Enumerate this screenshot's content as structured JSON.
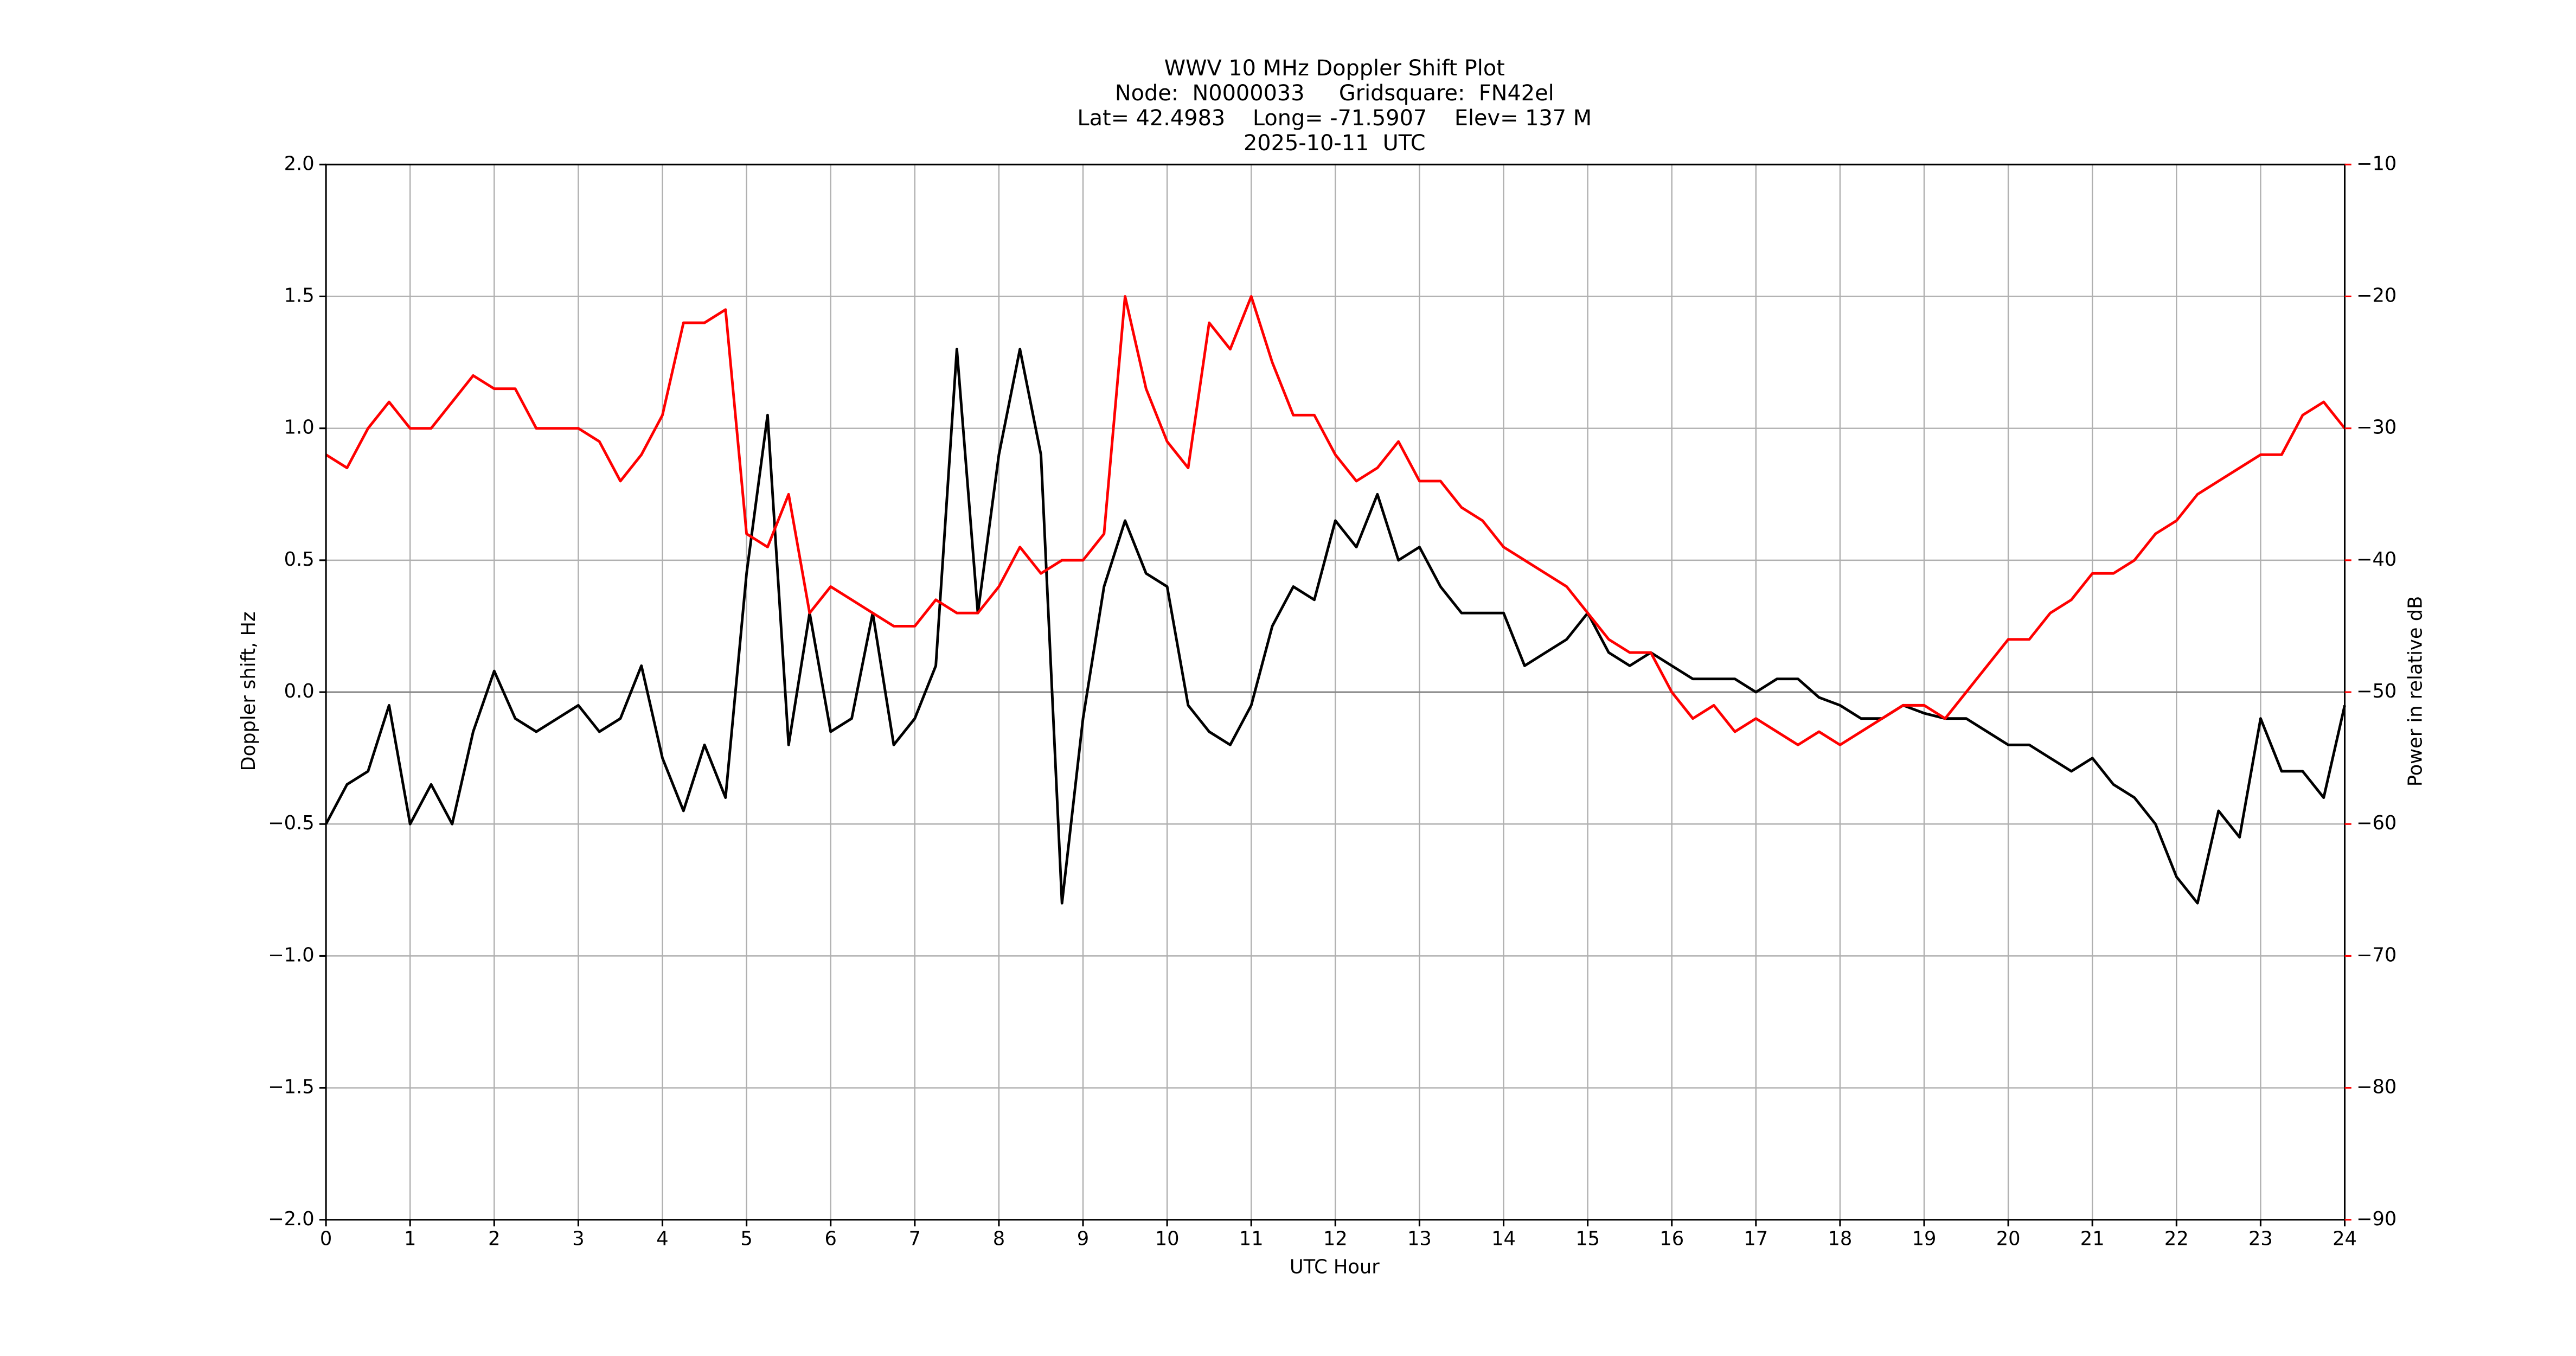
{
  "chart_data": {
    "type": "line",
    "title": [
      "WWV 10 MHz Doppler Shift Plot",
      "Node:  N0000033     Gridsquare:  FN42el",
      "Lat= 42.4983    Long= -71.5907    Elev= 137 M",
      "2025-10-11  UTC"
    ],
    "xlabel": "UTC Hour",
    "ylabel": "Doppler shift, Hz",
    "y2label": "Power in relative dB",
    "y2label_color": "#ff0000",
    "grid": true,
    "x": [
      0,
      0.25,
      0.5,
      0.75,
      1,
      1.25,
      1.5,
      1.75,
      2,
      2.25,
      2.5,
      2.75,
      3,
      3.25,
      3.5,
      3.75,
      4,
      4.25,
      4.5,
      4.75,
      5,
      5.25,
      5.5,
      5.75,
      6,
      6.25,
      6.5,
      6.75,
      7,
      7.25,
      7.5,
      7.75,
      8,
      8.25,
      8.5,
      8.75,
      9,
      9.25,
      9.5,
      9.75,
      10,
      10.25,
      10.5,
      10.75,
      11,
      11.25,
      11.5,
      11.75,
      12,
      12.25,
      12.5,
      12.75,
      13,
      13.25,
      13.5,
      13.75,
      14,
      14.25,
      14.5,
      14.75,
      15,
      15.25,
      15.5,
      15.75,
      16,
      16.25,
      16.5,
      16.75,
      17,
      17.25,
      17.5,
      17.75,
      18,
      18.25,
      18.5,
      18.75,
      19,
      19.25,
      19.5,
      19.75,
      20,
      20.25,
      20.5,
      20.75,
      21,
      21.25,
      21.5,
      21.75,
      22,
      22.25,
      22.5,
      22.75,
      23,
      23.25,
      23.5,
      23.75,
      24
    ],
    "series": [
      {
        "color": "#000000",
        "values": [
          -0.5,
          -0.35,
          -0.3,
          -0.05,
          -0.5,
          -0.35,
          -0.5,
          -0.15,
          0.08,
          -0.1,
          -0.15,
          -0.1,
          -0.05,
          -0.15,
          -0.1,
          0.1,
          -0.25,
          -0.45,
          -0.2,
          -0.4,
          0.45,
          1.05,
          -0.2,
          0.3,
          -0.15,
          -0.1,
          0.3,
          -0.2,
          -0.1,
          0.1,
          1.3,
          0.3,
          0.9,
          1.3,
          0.9,
          -0.8,
          -0.1,
          0.4,
          0.65,
          0.45,
          0.4,
          -0.05,
          -0.15,
          -0.2,
          -0.05,
          0.25,
          0.4,
          0.35,
          0.65,
          0.55,
          0.75,
          0.5,
          0.55,
          0.4,
          0.3,
          0.3,
          0.3,
          0.1,
          0.15,
          0.2,
          0.3,
          0.15,
          0.1,
          0.15,
          0.1,
          0.05,
          0.05,
          0.05,
          0.0,
          0.05,
          0.05,
          -0.02,
          -0.05,
          -0.1,
          -0.1,
          -0.05,
          -0.08,
          -0.1,
          -0.1,
          -0.15,
          -0.2,
          -0.2,
          -0.25,
          -0.3,
          -0.25,
          -0.35,
          -0.4,
          -0.5,
          -0.7,
          -0.8,
          -0.45,
          -0.55,
          -0.1,
          -0.3,
          -0.3,
          -0.4,
          -0.05
        ]
      },
      {
        "color": "#ff0000",
        "axis": "y2",
        "values": [
          -32,
          -33,
          -30,
          -28,
          -30,
          -30,
          -28,
          -26,
          -27,
          -27,
          -30,
          -30,
          -30,
          -31,
          -34,
          -32,
          -29,
          -22,
          -22,
          -21,
          -38,
          -39,
          -35,
          -44,
          -42,
          -43,
          -44,
          -45,
          -45,
          -43,
          -44,
          -44,
          -42,
          -39,
          -41,
          -40,
          -40,
          -38,
          -20,
          -27,
          -31,
          -33,
          -22,
          -24,
          -20,
          -25,
          -29,
          -29,
          -32,
          -34,
          -33,
          -31,
          -34,
          -34,
          -36,
          -37,
          -39,
          -40,
          -41,
          -42,
          -44,
          -46,
          -47,
          -47,
          -50,
          -52,
          -51,
          -53,
          -52,
          -53,
          -54,
          -53,
          -54,
          -53,
          -52,
          -51,
          -51,
          -52,
          -50,
          -48,
          -46,
          -46,
          -44,
          -43,
          -41,
          -41,
          -40,
          -38,
          -37,
          -35,
          -34,
          -33,
          -32,
          -32,
          -29,
          -28,
          -30
        ]
      }
    ],
    "xlim": [
      0,
      24
    ],
    "xticks": [
      0,
      1,
      2,
      3,
      4,
      5,
      6,
      7,
      8,
      9,
      10,
      11,
      12,
      13,
      14,
      15,
      16,
      17,
      18,
      19,
      20,
      21,
      22,
      23,
      24
    ],
    "ylim": [
      -2,
      2
    ],
    "yticks": [
      {
        "value": -2,
        "label": "−2.0"
      },
      {
        "value": -1.5,
        "label": "−1.5"
      },
      {
        "value": -1,
        "label": "−1.0"
      },
      {
        "value": -0.5,
        "label": "−0.5"
      },
      {
        "value": 0,
        "label": "0.0"
      },
      {
        "value": 0.5,
        "label": "0.5"
      },
      {
        "value": 1,
        "label": "1.0"
      },
      {
        "value": 1.5,
        "label": "1.5"
      },
      {
        "value": 2,
        "label": "2.0"
      }
    ],
    "y2lim": [
      -90,
      -10
    ],
    "y2ticks": [
      {
        "value": -90,
        "label": "−90"
      },
      {
        "value": -80,
        "label": "−80"
      },
      {
        "value": -70,
        "label": "−70"
      },
      {
        "value": -60,
        "label": "−60"
      },
      {
        "value": -50,
        "label": "−50"
      },
      {
        "value": -40,
        "label": "−40"
      },
      {
        "value": -30,
        "label": "−30"
      },
      {
        "value": -20,
        "label": "−20"
      },
      {
        "value": -10,
        "label": "−10"
      }
    ]
  }
}
